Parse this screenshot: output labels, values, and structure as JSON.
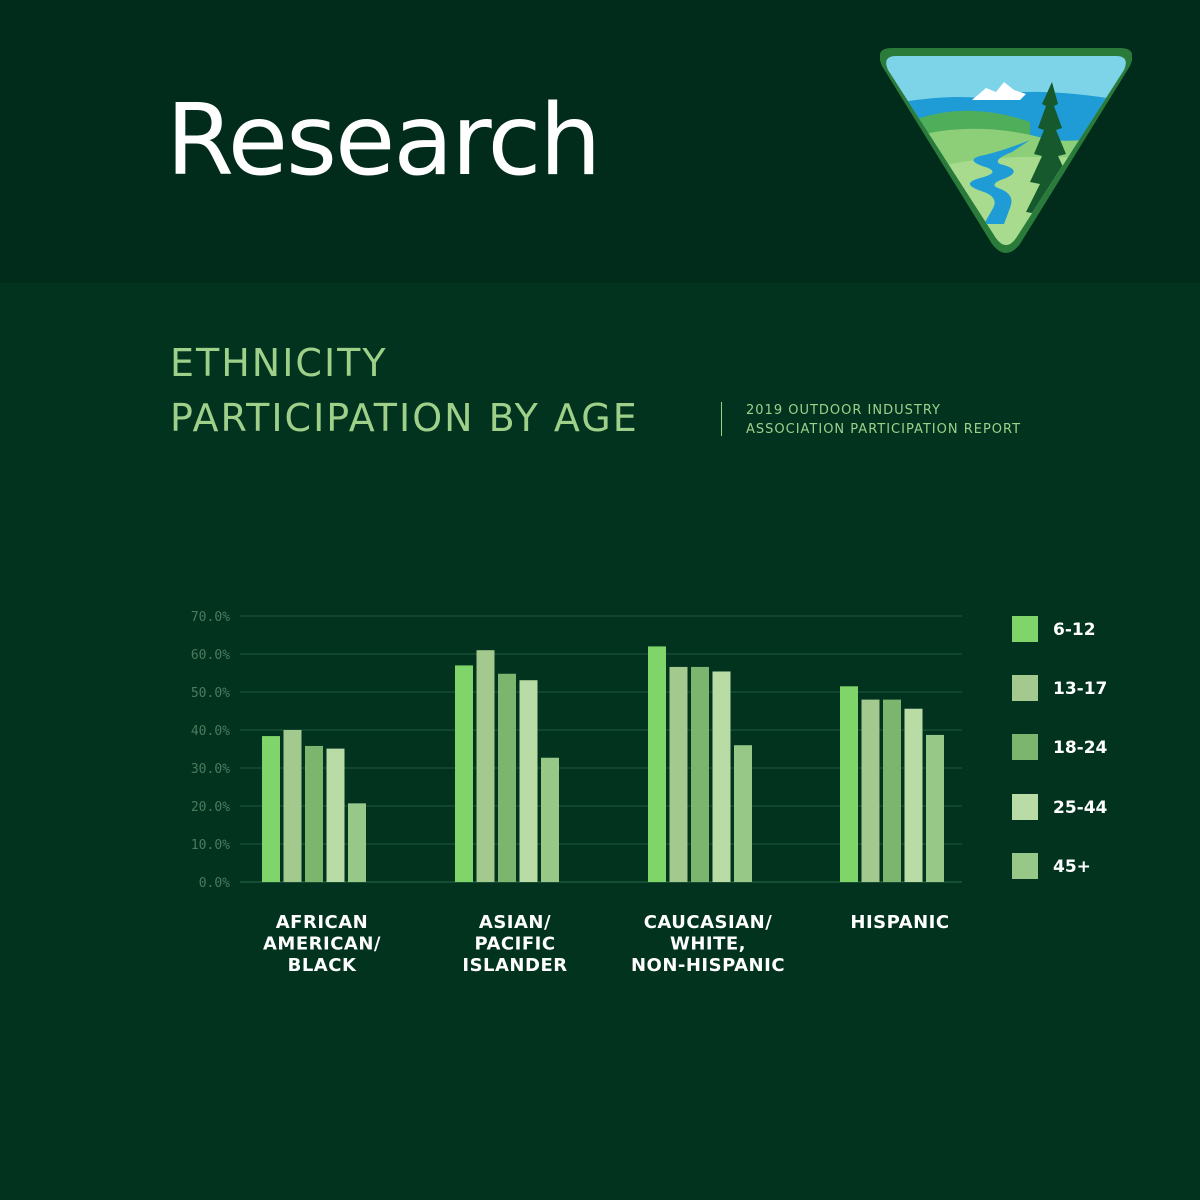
{
  "header": {
    "title": "Research",
    "logo_icon": "blm-mountain-landscape-logo"
  },
  "chart_title": {
    "line1": "ETHNICITY",
    "line2": "PARTICIPATION BY AGE",
    "source_line1": "2019 OUTDOOR INDUSTRY",
    "source_line2": "ASSOCIATION PARTICIPATION REPORT"
  },
  "colors": {
    "background": "#01331f",
    "header_background": "#012b1a",
    "title_green": "#9fd08a",
    "series": [
      "#7fd46a",
      "#a3c98e",
      "#7cb56d",
      "#b9dca6",
      "#98c888"
    ]
  },
  "chart_data": {
    "type": "bar",
    "categories": [
      [
        "AFRICAN",
        "AMERICAN/",
        "BLACK"
      ],
      [
        "ASIAN/",
        "PACIFIC",
        "ISLANDER"
      ],
      [
        "CAUCASIAN/",
        "WHITE,",
        "NON-HISPANIC"
      ],
      [
        "HISPANIC"
      ]
    ],
    "series": [
      {
        "name": "6-12",
        "values": [
          38.4,
          57.0,
          62.0,
          51.5
        ]
      },
      {
        "name": "13-17",
        "values": [
          40.0,
          61.0,
          56.6,
          48.0
        ]
      },
      {
        "name": "18-24",
        "values": [
          35.8,
          54.8,
          56.6,
          48.0
        ]
      },
      {
        "name": "25-44",
        "values": [
          35.1,
          53.1,
          55.4,
          45.6
        ]
      },
      {
        "name": "45+",
        "values": [
          20.7,
          32.7,
          36.0,
          38.7
        ]
      }
    ],
    "y_ticks": [
      "0.0%",
      "10.0%",
      "20.0%",
      "30.0%",
      "40.0%",
      "50.0%",
      "60.0%",
      "70.0%"
    ],
    "ylim": [
      0,
      70
    ],
    "grid": true,
    "legend": "right"
  }
}
